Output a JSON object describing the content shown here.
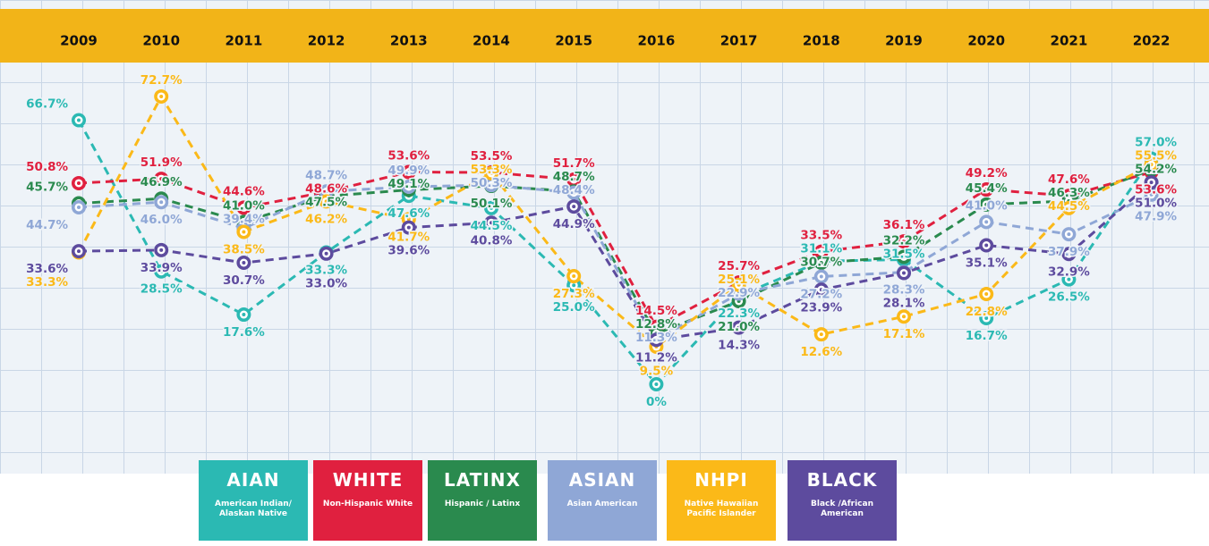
{
  "chart_data": {
    "type": "line",
    "categories": [
      "2009",
      "2010",
      "2011",
      "2012",
      "2013",
      "2014",
      "2015",
      "2016",
      "2017",
      "2018",
      "2019",
      "2020",
      "2021",
      "2022"
    ],
    "series": [
      {
        "name": "AIAN",
        "description": "American Indian/ Alaskan Native",
        "color": "#2bb9b3",
        "values": [
          66.7,
          28.5,
          17.6,
          33.3,
          47.6,
          44.5,
          25.0,
          0,
          22.3,
          31.1,
          31.5,
          16.7,
          26.5,
          57.0
        ],
        "value_labels": [
          "66.7%",
          "28.5%",
          "17.6%",
          "33.3%",
          "47.6%",
          "44.5%",
          "25.0%",
          "0%",
          "22.3%",
          "31.1%",
          "31.5%",
          "16.7%",
          "26.5%",
          "57.0%"
        ]
      },
      {
        "name": "WHITE",
        "description": "Non-Hispanic White",
        "color": "#e0203f",
        "values": [
          50.8,
          51.9,
          44.6,
          48.6,
          53.6,
          53.5,
          51.7,
          14.5,
          25.7,
          33.5,
          36.1,
          49.2,
          47.6,
          53.6
        ],
        "value_labels": [
          "50.8%",
          "51.9%",
          "44.6%",
          "48.6%",
          "53.6%",
          "53.5%",
          "51.7%",
          "14.5%",
          "25.7%",
          "33.5%",
          "36.1%",
          "49.2%",
          "47.6%",
          "53.6%"
        ]
      },
      {
        "name": "LATINX",
        "description": "Hispanic / Latinx",
        "color": "#2a8a4e",
        "values": [
          45.7,
          46.9,
          41.0,
          47.5,
          49.1,
          50.1,
          48.7,
          12.8,
          21.0,
          30.7,
          32.2,
          45.4,
          46.3,
          54.2
        ],
        "value_labels": [
          "45.7%",
          "46.9%",
          "41.0%",
          "47.5%",
          "49.1%",
          "50.1%",
          "48.7%",
          "12.8%",
          "21.0%",
          "30.7%",
          "32.2%",
          "45.4%",
          "46.3%",
          "54.2%"
        ]
      },
      {
        "name": "ASIAN",
        "description": "Asian American",
        "color": "#8fa7d6",
        "values": [
          44.7,
          46.0,
          39.4,
          48.7,
          49.9,
          50.3,
          48.4,
          11.3,
          22.9,
          27.2,
          28.3,
          41.0,
          37.9,
          47.9
        ],
        "value_labels": [
          "44.7%",
          "46.0%",
          "39.4%",
          "48.7%",
          "49.9%",
          "50.3%",
          "48.4%",
          "11.3%",
          "22.9%",
          "27.2%",
          "28.3%",
          "41.0%",
          "37.9%",
          "47.9%"
        ]
      },
      {
        "name": "NHPI",
        "description": "Native Hawaiian Pacific Islander",
        "color": "#fbb918",
        "values": [
          33.3,
          72.7,
          38.5,
          46.2,
          41.7,
          53.3,
          27.3,
          9.5,
          25.1,
          12.6,
          17.1,
          22.8,
          44.5,
          55.5
        ],
        "value_labels": [
          "33.3%",
          "72.7%",
          "38.5%",
          "46.2%",
          "41.7%",
          "53.3%",
          "27.3%",
          "9.5%",
          "25.1%",
          "12.6%",
          "17.1%",
          "22.8%",
          "44.5%",
          "55.5%"
        ]
      },
      {
        "name": "BLACK",
        "description": "Black /African American",
        "color": "#5d4b9e",
        "values": [
          33.6,
          33.9,
          30.7,
          33.0,
          39.6,
          40.8,
          44.9,
          11.2,
          14.3,
          23.9,
          28.1,
          35.1,
          32.9,
          51.0
        ],
        "value_labels": [
          "33.6%",
          "33.9%",
          "30.7%",
          "33.0%",
          "39.6%",
          "40.8%",
          "44.9%",
          "11.2%",
          "14.3%",
          "23.9%",
          "28.1%",
          "35.1%",
          "32.9%",
          "51.0%"
        ]
      }
    ]
  }
}
